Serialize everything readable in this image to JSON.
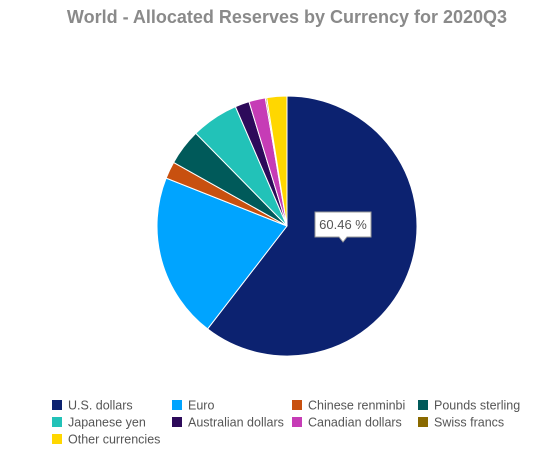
{
  "chart_data": {
    "type": "pie",
    "title": "World - Allocated Reserves by Currency for 2020Q3",
    "categories": [
      "U.S. dollars",
      "Euro",
      "Chinese renminbi",
      "Pounds sterling",
      "Japanese yen",
      "Australian dollars",
      "Canadian dollars",
      "Swiss francs",
      "Other currencies"
    ],
    "values": [
      60.46,
      20.54,
      2.13,
      4.5,
      5.88,
      1.77,
      2.05,
      0.17,
      2.5
    ],
    "value_labels": [
      "60.46 %",
      null,
      null,
      null,
      null,
      null,
      null,
      null,
      null
    ],
    "colors": [
      "#0c2270",
      "#00a4ff",
      "#c8500f",
      "#005a5a",
      "#22c2b8",
      "#2d0a5a",
      "#c63cb6",
      "#8a6a00",
      "#ffd700"
    ],
    "legend": "bottom"
  }
}
